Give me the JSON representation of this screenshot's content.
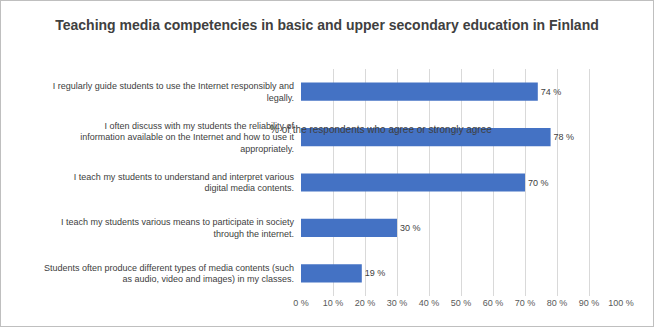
{
  "chart_data": {
    "type": "bar",
    "orientation": "horizontal",
    "title": "Teaching media competencies in basic and upper secondary education in Finland",
    "subtitle": "% of the respondents who agree or strongly agree",
    "categories": [
      "I regularly guide students to use the Internet responsibly and legally.",
      "I often discuss with my students the reliability of information available on the Internet and how to use it appropriately.",
      "I teach my students to understand and interpret various digital media contents.",
      "I teach my students various means to participate in society through the internet.",
      "Students often produce different types of media contents (such as audio, video and images) in my classes."
    ],
    "values": [
      74,
      78,
      70,
      30,
      19
    ],
    "value_labels": [
      "74 %",
      "78 %",
      "70 %",
      "30 %",
      "19 %"
    ],
    "data_labels": true,
    "color": "#4472c4",
    "xlim": [
      0,
      100
    ],
    "xticks": [
      {
        "value": 0,
        "label": "0 %"
      },
      {
        "value": 10,
        "label": "10 %"
      },
      {
        "value": 20,
        "label": "20 %"
      },
      {
        "value": 30,
        "label": "30 %"
      },
      {
        "value": 40,
        "label": "40 %"
      },
      {
        "value": 50,
        "label": "50 %"
      },
      {
        "value": 60,
        "label": "60 %"
      },
      {
        "value": 70,
        "label": "70 %"
      },
      {
        "value": 80,
        "label": "80 %"
      },
      {
        "value": 90,
        "label": "90 %"
      },
      {
        "value": 100,
        "label": "100 %"
      }
    ],
    "grid": true
  }
}
